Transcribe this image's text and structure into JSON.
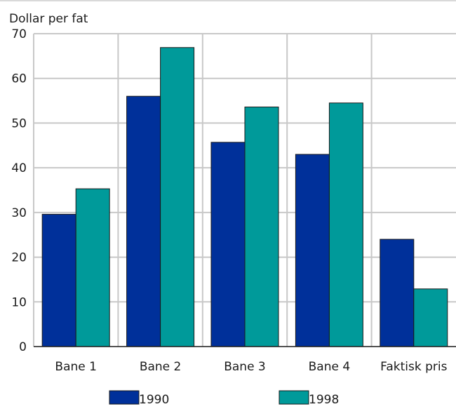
{
  "chart_data": {
    "type": "bar",
    "title": "",
    "xlabel": "",
    "ylabel": "Dollar per fat",
    "ylim": [
      0,
      70
    ],
    "yticks": [
      0,
      10,
      20,
      30,
      40,
      50,
      60,
      70
    ],
    "grid": true,
    "legend": "bottom",
    "categories": [
      "Bane 1",
      "Bane 2",
      "Bane 3",
      "Bane 4",
      "Faktisk pris"
    ],
    "series": [
      {
        "name": "1990",
        "color": "#00309a",
        "values": [
          29.6,
          56.0,
          45.7,
          43.0,
          24.0
        ]
      },
      {
        "name": "1998",
        "color": "#009a9a",
        "values": [
          35.3,
          66.9,
          53.6,
          54.5,
          12.9
        ]
      }
    ]
  }
}
